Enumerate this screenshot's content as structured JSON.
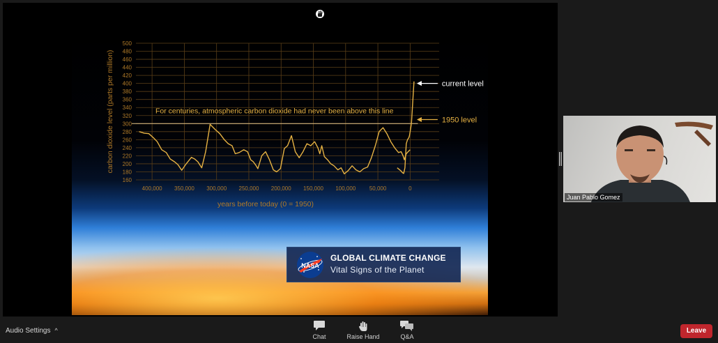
{
  "chart_data": {
    "type": "line",
    "title": "",
    "ylabel": "carbon dioxide level (parts per million)",
    "xlabel": "years before today (0 = 1950)",
    "ylim": [
      160,
      500
    ],
    "xlim": [
      425000,
      -45000
    ],
    "y_ticks": [
      160,
      180,
      200,
      220,
      240,
      260,
      280,
      300,
      320,
      340,
      360,
      380,
      400,
      420,
      440,
      460,
      480,
      500
    ],
    "x_ticks": [
      400000,
      350000,
      300000,
      250000,
      200000,
      150000,
      100000,
      50000,
      0
    ],
    "x_tick_labels": [
      "400,000",
      "350,000",
      "300,000",
      "250,000",
      "200,000",
      "150,000",
      "100,000",
      "50,000",
      "0"
    ],
    "grid": true,
    "series": [
      {
        "name": "",
        "color": "#e6b243",
        "x": [
          420000,
          412000,
          405000,
          398000,
          392000,
          385000,
          378000,
          372000,
          365000,
          360000,
          354000,
          348000,
          343000,
          339000,
          334000,
          329000,
          323000,
          317000,
          310000,
          302000,
          295000,
          288000,
          282000,
          276000,
          271000,
          265000,
          258000,
          252000,
          247000,
          243000,
          239000,
          236000,
          230000,
          224000,
          218000,
          212000,
          207000,
          201000,
          195000,
          190000,
          184000,
          178000,
          172000,
          166000,
          160000,
          154000,
          148000,
          143000,
          140000,
          137000,
          133000,
          128000,
          123000,
          118000,
          112000,
          107000,
          102000,
          96000,
          90000,
          84000,
          78000,
          72000,
          66000,
          60000,
          54000,
          48000,
          42000,
          36000,
          30000,
          24000,
          18000,
          14000,
          11000,
          9000,
          6000,
          2000,
          0
        ],
        "values": [
          280,
          276,
          275,
          265,
          255,
          235,
          228,
          212,
          205,
          198,
          184,
          198,
          208,
          216,
          212,
          205,
          190,
          230,
          298,
          285,
          275,
          260,
          250,
          245,
          225,
          228,
          235,
          230,
          210,
          205,
          196,
          188,
          220,
          230,
          210,
          185,
          180,
          188,
          238,
          245,
          270,
          230,
          215,
          230,
          250,
          245,
          255,
          240,
          225,
          245,
          218,
          210,
          200,
          195,
          185,
          190,
          175,
          183,
          195,
          185,
          180,
          188,
          192,
          215,
          245,
          280,
          290,
          275,
          255,
          240,
          228,
          230,
          220,
          210,
          225,
          232,
          235
        ]
      },
      {
        "name": "",
        "color": "#e6b243",
        "x": [
          20000,
          14000,
          12000,
          10000,
          8000,
          6000,
          4000,
          2000,
          1000,
          500,
          0,
          -2000,
          -6000
        ],
        "values": [
          190,
          182,
          178,
          176,
          190,
          250,
          260,
          265,
          270,
          275,
          280,
          300,
          405
        ]
      }
    ],
    "reference_line": {
      "y": 300,
      "label": "For centuries, atmospheric carbon dioxide had never been above this line"
    },
    "annotations": [
      {
        "label": "current level",
        "y": 400
      },
      {
        "label": "1950 level",
        "y": 310
      }
    ]
  },
  "banner": {
    "logo_text": "NASA",
    "title": "GLOBAL CLIMATE CHANGE",
    "subtitle": "Vital Signs of the Planet"
  },
  "participant": {
    "name": "Juan Pablo Gomez"
  },
  "toolbar": {
    "audio_settings": "Audio Settings",
    "audio_caret": "^",
    "chat": "Chat",
    "raise_hand": "Raise Hand",
    "qa": "Q&A",
    "leave": "Leave"
  },
  "colors": {
    "leave": "#c0262d",
    "chart_line": "#e6b243",
    "toolbar_bg": "#1a1a1a"
  }
}
